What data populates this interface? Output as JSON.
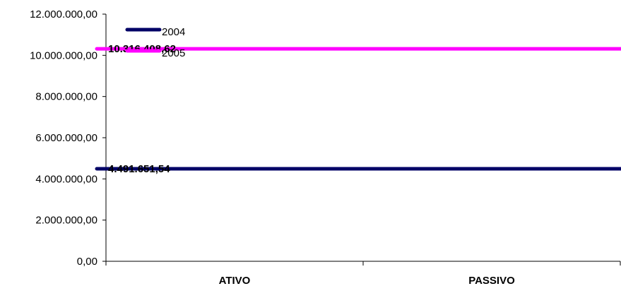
{
  "chart_data": {
    "type": "line",
    "categories": [
      "ATIVO",
      "PASSIVO"
    ],
    "ylim": [
      0,
      12000000
    ],
    "ytick_values": [
      0,
      2000000,
      4000000,
      6000000,
      8000000,
      10000000,
      12000000
    ],
    "ytick_labels": [
      "0,00",
      "2.000.000,00",
      "4.000.000,00",
      "6.000.000,00",
      "8.000.000,00",
      "10.000.000,00",
      "12.000.000,00"
    ],
    "series": [
      {
        "name": "2004",
        "color": "#000066",
        "values": [
          4491651.54,
          4491651.54
        ],
        "labels": [
          "4.491.651,54",
          "4.491.651,54"
        ]
      },
      {
        "name": "2005",
        "color": "#ff00ff",
        "values": [
          10316408.62,
          10316408.62
        ],
        "labels": [
          "10.316.408,62",
          "10.316.408,62"
        ]
      }
    ],
    "legend_position": "top-left",
    "grid": false
  }
}
